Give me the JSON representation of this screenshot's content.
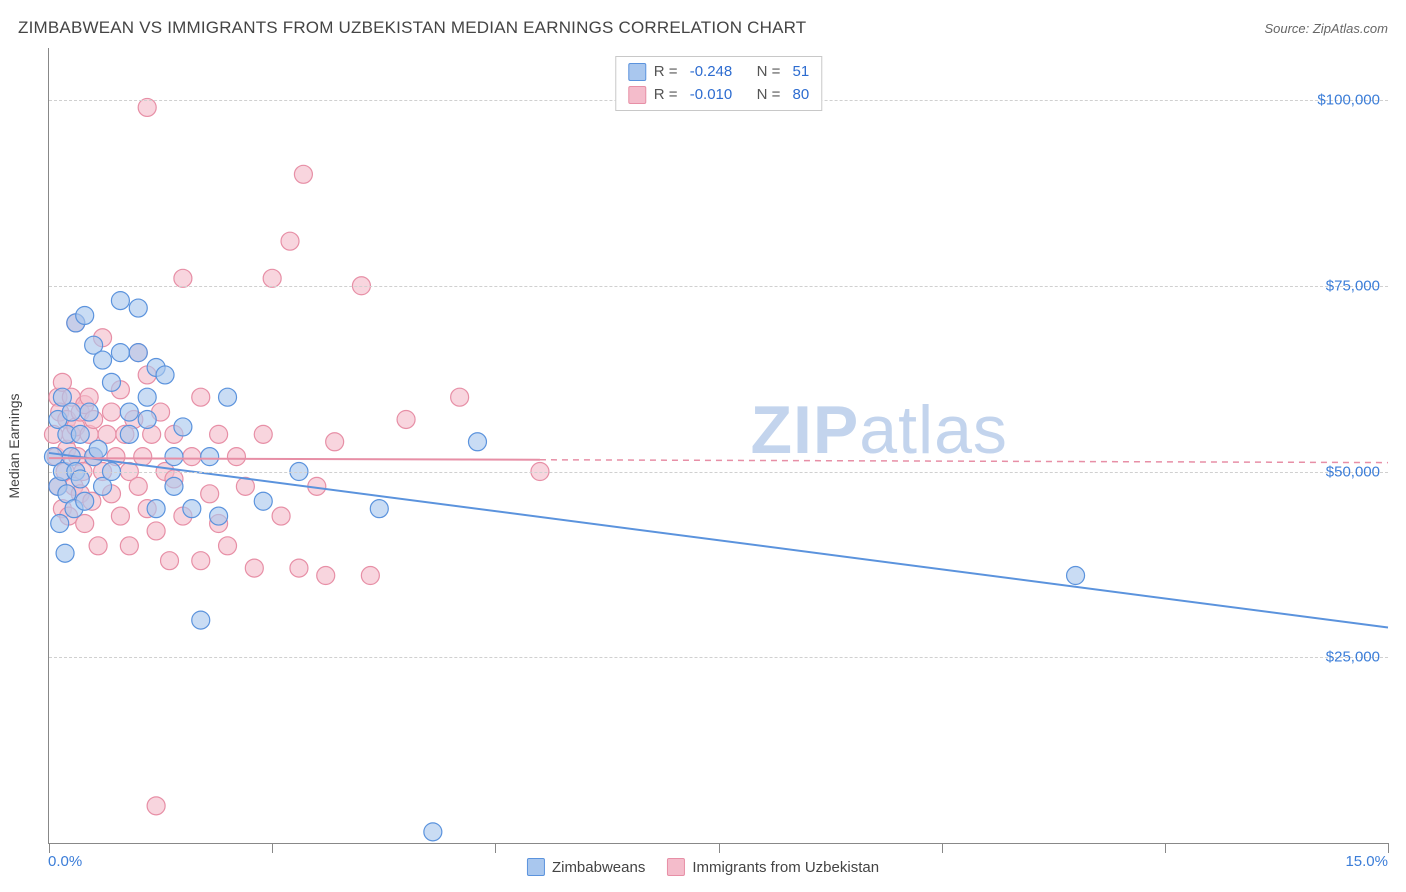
{
  "title": "ZIMBABWEAN VS IMMIGRANTS FROM UZBEKISTAN MEDIAN EARNINGS CORRELATION CHART",
  "source_label": "Source: ",
  "source_name": "ZipAtlas.com",
  "y_axis_title": "Median Earnings",
  "watermark_bold": "ZIP",
  "watermark_rest": "atlas",
  "chart": {
    "type": "scatter",
    "xlim": [
      0,
      15
    ],
    "ylim": [
      0,
      107000
    ],
    "x_ticks": [
      0,
      2.5,
      5,
      7.5,
      10,
      12.5,
      15
    ],
    "x_tick_labels": {
      "0": "0.0%",
      "15": "15.0%"
    },
    "y_ticks": [
      25000,
      50000,
      75000,
      100000
    ],
    "y_tick_labels": {
      "25000": "$25,000",
      "50000": "$50,000",
      "75000": "$75,000",
      "100000": "$100,000"
    },
    "grid_color": "#d0d0d0",
    "axis_color": "#888888",
    "background_color": "#ffffff",
    "marker_radius": 9,
    "marker_stroke_width": 1.2,
    "marker_fill_opacity": 0.28,
    "trend_line_width": 2,
    "dashed_extension_dash": "6,5",
    "series": [
      {
        "key": "zimbabweans",
        "label": "Zimbabweans",
        "color": "#5b93dd",
        "fill": "#a9c7ee",
        "R": "-0.248",
        "N": "51",
        "trend": {
          "x1": 0,
          "y1": 52500,
          "x2": 15,
          "y2": 29000,
          "solid_until_x": 15
        },
        "points": [
          [
            0.05,
            52000
          ],
          [
            0.1,
            48000
          ],
          [
            0.1,
            57000
          ],
          [
            0.12,
            43000
          ],
          [
            0.15,
            50000
          ],
          [
            0.15,
            60000
          ],
          [
            0.18,
            39000
          ],
          [
            0.2,
            55000
          ],
          [
            0.2,
            47000
          ],
          [
            0.25,
            52000
          ],
          [
            0.25,
            58000
          ],
          [
            0.28,
            45000
          ],
          [
            0.3,
            70000
          ],
          [
            0.3,
            50000
          ],
          [
            0.35,
            55000
          ],
          [
            0.35,
            49000
          ],
          [
            0.4,
            71000
          ],
          [
            0.4,
            46000
          ],
          [
            0.45,
            58000
          ],
          [
            0.5,
            67000
          ],
          [
            0.5,
            52000
          ],
          [
            0.55,
            53000
          ],
          [
            0.6,
            65000
          ],
          [
            0.6,
            48000
          ],
          [
            0.7,
            62000
          ],
          [
            0.7,
            50000
          ],
          [
            0.8,
            73000
          ],
          [
            0.8,
            66000
          ],
          [
            0.9,
            55000
          ],
          [
            0.9,
            58000
          ],
          [
            1.0,
            66000
          ],
          [
            1.0,
            72000
          ],
          [
            1.1,
            60000
          ],
          [
            1.1,
            57000
          ],
          [
            1.2,
            45000
          ],
          [
            1.2,
            64000
          ],
          [
            1.3,
            63000
          ],
          [
            1.4,
            48000
          ],
          [
            1.4,
            52000
          ],
          [
            1.5,
            56000
          ],
          [
            1.6,
            45000
          ],
          [
            1.7,
            30000
          ],
          [
            1.8,
            52000
          ],
          [
            1.9,
            44000
          ],
          [
            2.0,
            60000
          ],
          [
            2.4,
            46000
          ],
          [
            2.8,
            50000
          ],
          [
            3.7,
            45000
          ],
          [
            4.3,
            1500
          ],
          [
            4.8,
            54000
          ],
          [
            11.5,
            36000
          ]
        ]
      },
      {
        "key": "uzbekistan",
        "label": "Immigrants from Uzbekistan",
        "color": "#e78fa6",
        "fill": "#f4bccb",
        "R": "-0.010",
        "N": "80",
        "trend": {
          "x1": 0,
          "y1": 51800,
          "x2": 15,
          "y2": 51200,
          "solid_until_x": 5.5
        },
        "points": [
          [
            0.05,
            55000
          ],
          [
            0.08,
            52000
          ],
          [
            0.1,
            60000
          ],
          [
            0.1,
            48000
          ],
          [
            0.12,
            58000
          ],
          [
            0.15,
            45000
          ],
          [
            0.15,
            62000
          ],
          [
            0.18,
            50000
          ],
          [
            0.2,
            57000
          ],
          [
            0.2,
            53000
          ],
          [
            0.22,
            44000
          ],
          [
            0.25,
            55000
          ],
          [
            0.25,
            60000
          ],
          [
            0.28,
            48000
          ],
          [
            0.3,
            56000
          ],
          [
            0.3,
            70000
          ],
          [
            0.32,
            52000
          ],
          [
            0.35,
            58000
          ],
          [
            0.35,
            47000
          ],
          [
            0.38,
            50000
          ],
          [
            0.4,
            59000
          ],
          [
            0.4,
            43000
          ],
          [
            0.45,
            55000
          ],
          [
            0.45,
            60000
          ],
          [
            0.48,
            46000
          ],
          [
            0.5,
            52000
          ],
          [
            0.5,
            57000
          ],
          [
            0.55,
            40000
          ],
          [
            0.6,
            68000
          ],
          [
            0.6,
            50000
          ],
          [
            0.65,
            55000
          ],
          [
            0.7,
            47000
          ],
          [
            0.7,
            58000
          ],
          [
            0.75,
            52000
          ],
          [
            0.8,
            44000
          ],
          [
            0.8,
            61000
          ],
          [
            0.85,
            55000
          ],
          [
            0.9,
            40000
          ],
          [
            0.9,
            50000
          ],
          [
            0.95,
            57000
          ],
          [
            1.0,
            66000
          ],
          [
            1.0,
            48000
          ],
          [
            1.05,
            52000
          ],
          [
            1.1,
            63000
          ],
          [
            1.1,
            45000
          ],
          [
            1.1,
            99000
          ],
          [
            1.15,
            55000
          ],
          [
            1.2,
            5000
          ],
          [
            1.2,
            42000
          ],
          [
            1.25,
            58000
          ],
          [
            1.3,
            50000
          ],
          [
            1.35,
            38000
          ],
          [
            1.4,
            49000
          ],
          [
            1.4,
            55000
          ],
          [
            1.5,
            76000
          ],
          [
            1.5,
            44000
          ],
          [
            1.6,
            52000
          ],
          [
            1.7,
            60000
          ],
          [
            1.7,
            38000
          ],
          [
            1.8,
            47000
          ],
          [
            1.9,
            55000
          ],
          [
            1.9,
            43000
          ],
          [
            2.0,
            40000
          ],
          [
            2.1,
            52000
          ],
          [
            2.2,
            48000
          ],
          [
            2.3,
            37000
          ],
          [
            2.4,
            55000
          ],
          [
            2.5,
            76000
          ],
          [
            2.6,
            44000
          ],
          [
            2.7,
            81000
          ],
          [
            2.8,
            37000
          ],
          [
            2.85,
            90000
          ],
          [
            3.0,
            48000
          ],
          [
            3.1,
            36000
          ],
          [
            3.2,
            54000
          ],
          [
            3.5,
            75000
          ],
          [
            3.6,
            36000
          ],
          [
            4.0,
            57000
          ],
          [
            4.6,
            60000
          ],
          [
            5.5,
            50000
          ]
        ]
      }
    ]
  },
  "stats_labels": {
    "R": "R = ",
    "N": "N = "
  }
}
